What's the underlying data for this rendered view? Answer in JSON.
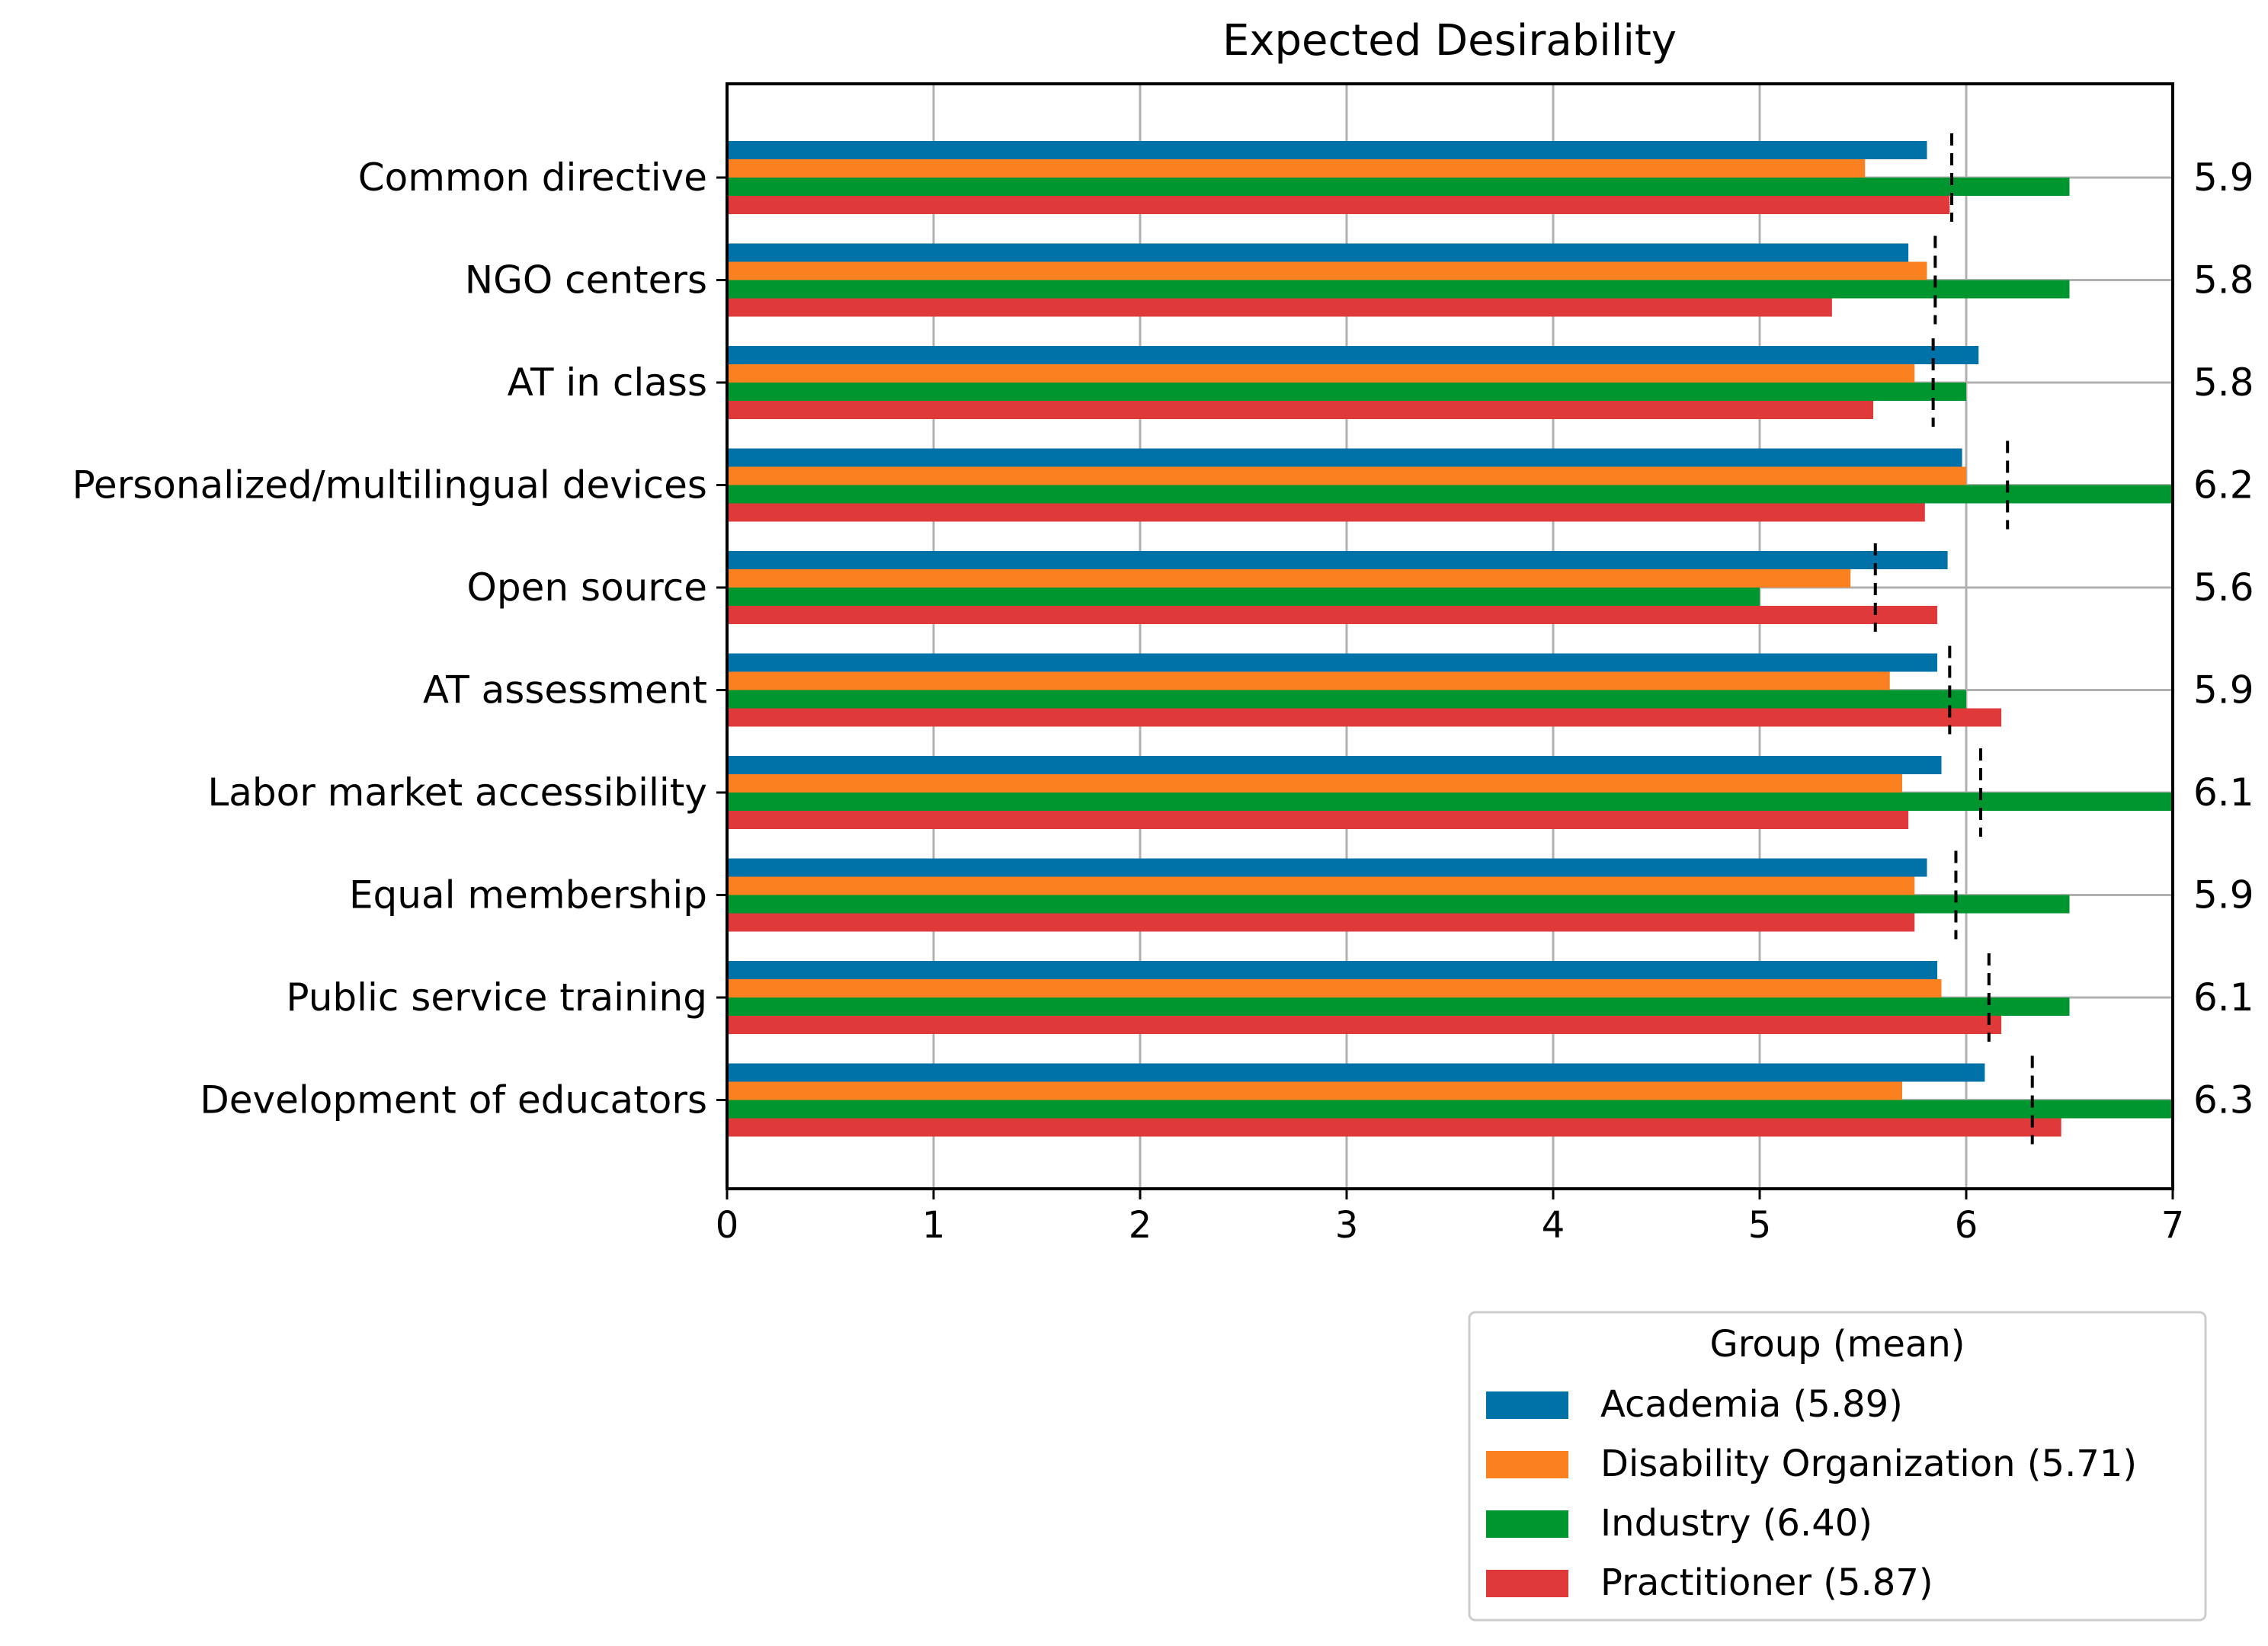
{
  "chart_data": {
    "type": "bar",
    "orientation": "horizontal",
    "title": "Expected Desirability",
    "xlabel": "",
    "ylabel": "",
    "xlim": [
      0,
      7
    ],
    "xticks": [
      "0",
      "1",
      "2",
      "3",
      "4",
      "5",
      "6",
      "7"
    ],
    "grid": true,
    "categories": [
      "Common directive",
      "NGO centers",
      "AT in class",
      "Personalized/multilingual devices",
      "Open source",
      "AT assessment",
      "Labor market accessibility",
      "Equal membership",
      "Public service training",
      "Development of educators"
    ],
    "series": [
      {
        "name": "Academia (5.89)",
        "color": "#0072a8",
        "values": [
          5.81,
          5.72,
          6.06,
          5.98,
          5.91,
          5.86,
          5.88,
          5.81,
          5.86,
          6.09
        ]
      },
      {
        "name": "Disability Organization (5.71)",
        "color": "#fb8120",
        "values": [
          5.51,
          5.81,
          5.75,
          6.0,
          5.44,
          5.63,
          5.69,
          5.75,
          5.88,
          5.69
        ]
      },
      {
        "name": "Industry (6.40)",
        "color": "#00962f",
        "values": [
          6.5,
          6.5,
          6.0,
          7.0,
          5.0,
          6.0,
          7.0,
          6.5,
          6.5,
          7.0
        ]
      },
      {
        "name": "Practitioner (5.87)",
        "color": "#e0393a",
        "values": [
          5.92,
          5.35,
          5.55,
          5.8,
          5.86,
          6.17,
          5.72,
          5.75,
          6.17,
          6.46
        ]
      }
    ],
    "means": [
      5.93,
      5.85,
      5.84,
      6.2,
      5.56,
      5.92,
      6.07,
      5.95,
      6.11,
      6.32
    ],
    "mean_labels": [
      "5.9",
      "5.8",
      "5.8",
      "6.2",
      "5.6",
      "5.9",
      "6.1",
      "5.9",
      "6.1",
      "6.3"
    ],
    "legend": {
      "title": "Group (mean)",
      "placement": "below-right"
    }
  }
}
